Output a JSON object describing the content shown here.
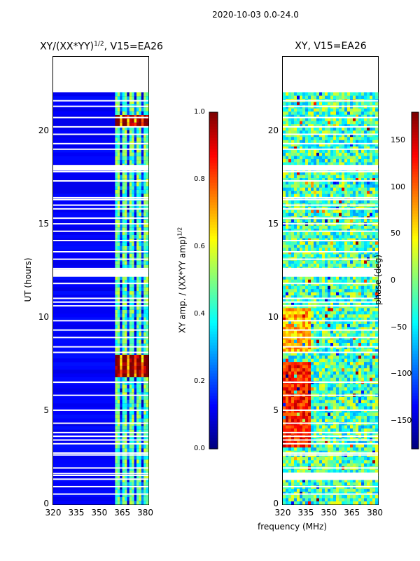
{
  "figure": {
    "title": "2020-10-03 0.0-24.0",
    "xlabel": "frequency (MHz)"
  },
  "chart_data": [
    {
      "type": "heatmap",
      "title": "XY/(XX*YY)",
      "title_exponent": "1/2",
      "title_suffix": ", V15=EA26",
      "xlabel": "",
      "ylabel": "UT (hours)",
      "xlim": [
        320,
        382
      ],
      "ylim": [
        0,
        24
      ],
      "x_ticks": [
        "320",
        "335",
        "350",
        "365",
        "380"
      ],
      "y_ticks": [
        "0",
        "5",
        "10",
        "15",
        "20"
      ],
      "colorbar": {
        "label": "XY amp. / (XX*YY amp)",
        "label_exponent": "1/2",
        "range": [
          0.0,
          1.0
        ],
        "ticks": [
          "0.0",
          "0.2",
          "0.4",
          "0.6",
          "0.8",
          "1.0"
        ],
        "colormap": "jet"
      },
      "data_extent_hours": [
        0,
        22.1
      ],
      "bright_band_mhz": [
        360,
        380
      ],
      "peak_hours": [
        7.1,
        7.6,
        20.5
      ]
    },
    {
      "type": "heatmap",
      "title": "XY, V15=EA26",
      "xlabel": "frequency (MHz)",
      "ylabel": "",
      "xlim": [
        320,
        382
      ],
      "ylim": [
        0,
        24
      ],
      "x_ticks": [
        "320",
        "335",
        "350",
        "365",
        "380"
      ],
      "y_ticks": [
        "0",
        "5",
        "10",
        "15",
        "20"
      ],
      "colorbar": {
        "label": "phase (deg)",
        "range": [
          -180,
          180
        ],
        "ticks": [
          "−150",
          "−100",
          "−50",
          "0",
          "50",
          "100",
          "150"
        ],
        "colormap": "jet"
      },
      "data_extent_hours": [
        0,
        22.1
      ],
      "high_phase_region_mhz": [
        320,
        337
      ],
      "high_phase_region_hours": [
        3,
        7.5
      ]
    }
  ]
}
